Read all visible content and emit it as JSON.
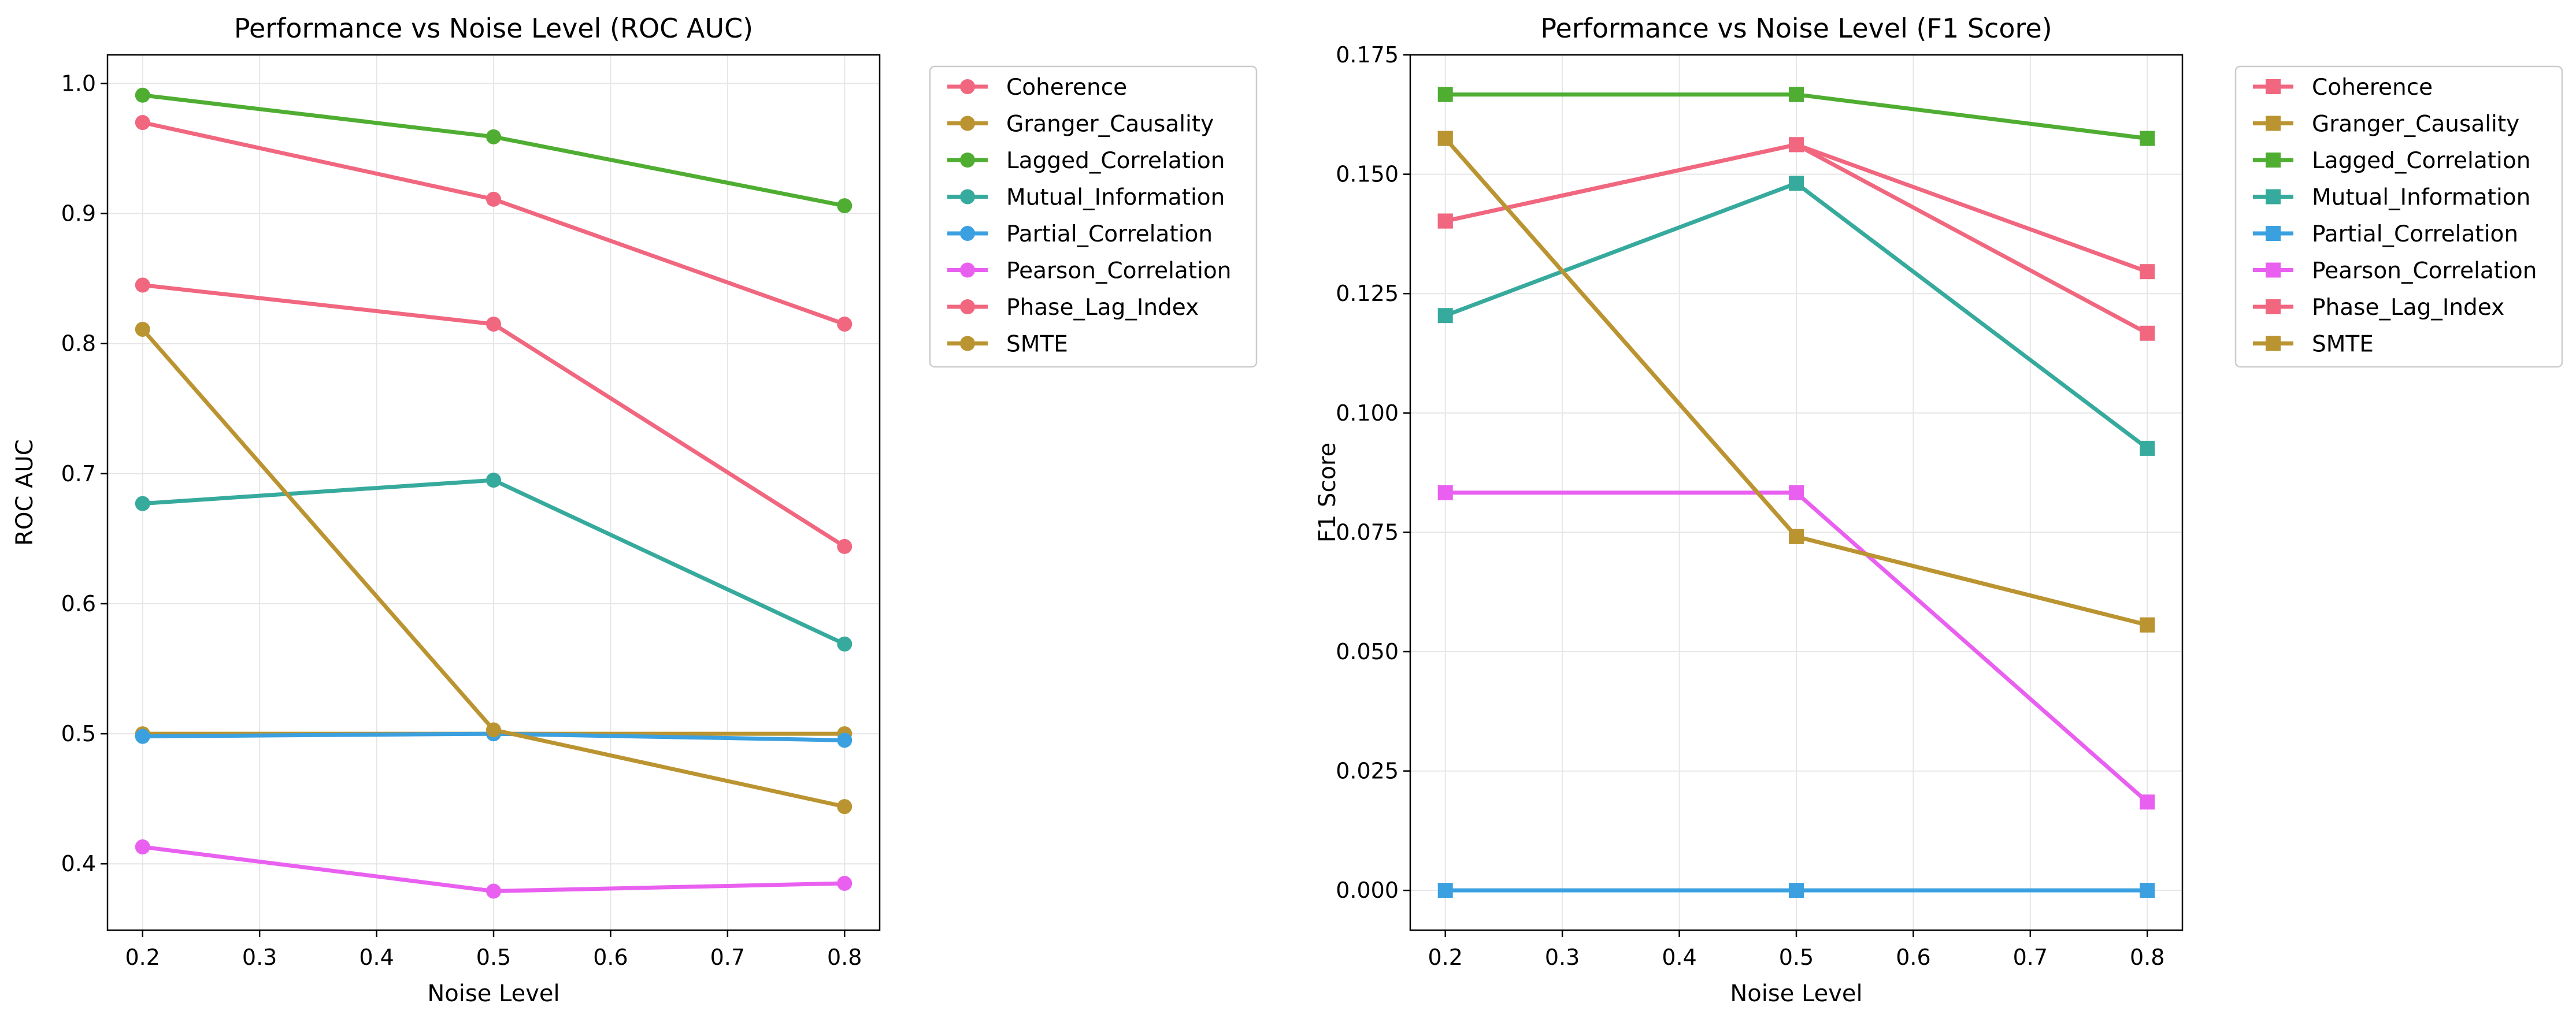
{
  "chart_data": [
    {
      "type": "line",
      "title": "Performance vs Noise Level (ROC AUC)",
      "xlabel": "Noise Level",
      "ylabel": "ROC AUC",
      "x": [
        0.2,
        0.5,
        0.8
      ],
      "xlim": [
        0.17,
        0.83
      ],
      "ylim": [
        0.349,
        1.022
      ],
      "xticks": [
        0.2,
        0.3,
        0.4,
        0.5,
        0.6,
        0.7,
        0.8
      ],
      "xtick_labels": [
        "0.2",
        "0.3",
        "0.4",
        "0.5",
        "0.6",
        "0.7",
        "0.8"
      ],
      "yticks": [
        0.4,
        0.5,
        0.6,
        0.7,
        0.8,
        0.9,
        1.0
      ],
      "ytick_labels": [
        "0.4",
        "0.5",
        "0.6",
        "0.7",
        "0.8",
        "0.9",
        "1.0"
      ],
      "marker": "circle",
      "grid": true,
      "legend_position": "outside-right",
      "series": [
        {
          "name": "Coherence",
          "color": "#f0677f",
          "values": [
            0.97,
            0.911,
            0.815
          ]
        },
        {
          "name": "Granger_Causality",
          "color": "#bb9432",
          "values": [
            0.5,
            0.5,
            0.5
          ]
        },
        {
          "name": "Lagged_Correlation",
          "color": "#4fae32",
          "values": [
            0.991,
            0.959,
            0.906
          ]
        },
        {
          "name": "Mutual_Information",
          "color": "#36aa9c",
          "values": [
            0.677,
            0.695,
            0.569
          ]
        },
        {
          "name": "Partial_Correlation",
          "color": "#3ba0e0",
          "values": [
            0.498,
            0.5,
            0.495
          ]
        },
        {
          "name": "Pearson_Correlation",
          "color": "#e960f0",
          "values": [
            0.413,
            0.379,
            0.385
          ]
        },
        {
          "name": "Phase_Lag_Index",
          "color": "#f0677f",
          "values": [
            0.845,
            0.815,
            0.644
          ]
        },
        {
          "name": "SMTE",
          "color": "#bb9432",
          "values": [
            0.811,
            0.503,
            0.444
          ]
        }
      ]
    },
    {
      "type": "line",
      "title": "Performance vs Noise Level (F1 Score)",
      "xlabel": "Noise Level",
      "ylabel": "F1 Score",
      "x": [
        0.2,
        0.5,
        0.8
      ],
      "xlim": [
        0.17,
        0.83
      ],
      "ylim": [
        -0.00833,
        0.175
      ],
      "xticks": [
        0.2,
        0.3,
        0.4,
        0.5,
        0.6,
        0.7,
        0.8
      ],
      "xtick_labels": [
        "0.2",
        "0.3",
        "0.4",
        "0.5",
        "0.6",
        "0.7",
        "0.8"
      ],
      "yticks": [
        0.0,
        0.025,
        0.05,
        0.075,
        0.1,
        0.125,
        0.15,
        0.175
      ],
      "ytick_labels": [
        "0.000",
        "0.025",
        "0.050",
        "0.075",
        "0.100",
        "0.125",
        "0.150",
        "0.175"
      ],
      "marker": "square",
      "grid": true,
      "legend_position": "outside-right",
      "series": [
        {
          "name": "Coherence",
          "color": "#f0677f",
          "values": [
            0.1402,
            0.1562,
            0.1296
          ]
        },
        {
          "name": "Granger_Causality",
          "color": "#bb9432",
          "values": [
            0.1575,
            0.0741,
            0.0556
          ]
        },
        {
          "name": "Lagged_Correlation",
          "color": "#4fae32",
          "values": [
            0.1667,
            0.1667,
            0.1575
          ]
        },
        {
          "name": "Mutual_Information",
          "color": "#36aa9c",
          "values": [
            0.1204,
            0.1481,
            0.0926
          ]
        },
        {
          "name": "Partial_Correlation",
          "color": "#3ba0e0",
          "values": [
            0.0,
            0.0,
            0.0
          ]
        },
        {
          "name": "Pearson_Correlation",
          "color": "#e960f0",
          "values": [
            0.0833,
            0.0833,
            0.0185
          ]
        },
        {
          "name": "Phase_Lag_Index",
          "color": "#f0677f",
          "values": [
            0.1402,
            0.1562,
            0.1167
          ]
        },
        {
          "name": "SMTE",
          "color": "#bb9432",
          "values": [
            0.1575,
            0.0741,
            0.0556
          ]
        }
      ]
    }
  ]
}
